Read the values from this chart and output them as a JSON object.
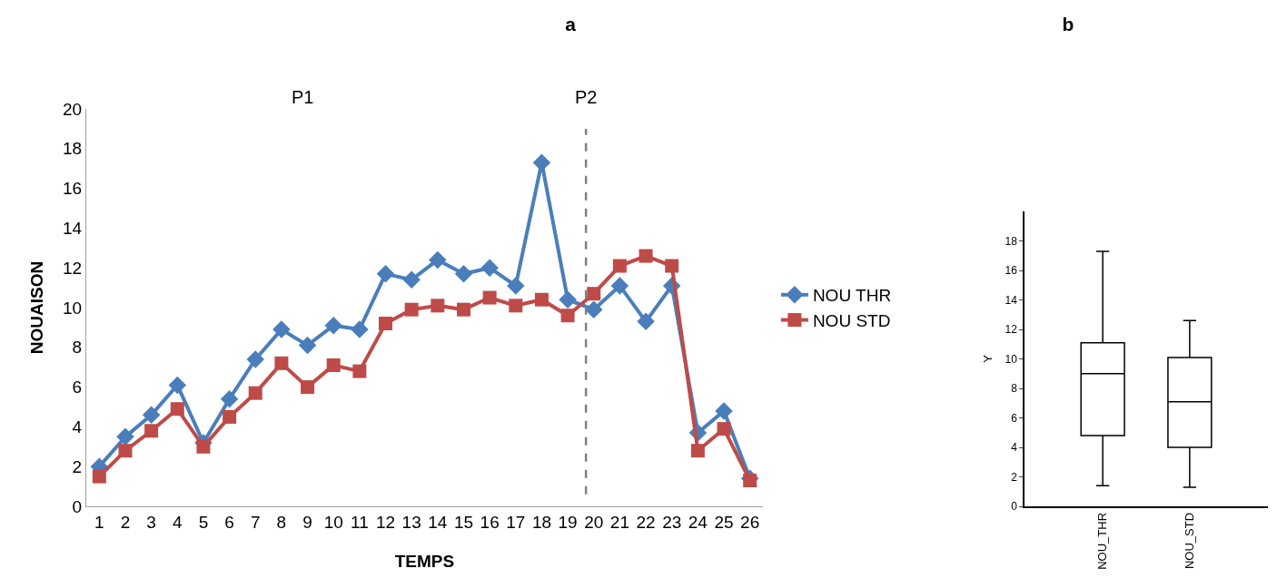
{
  "chart_data": [
    {
      "type": "line",
      "title": "a",
      "xlabel": "TEMPS",
      "ylabel": "NOUAISON",
      "x": [
        1,
        2,
        3,
        4,
        5,
        6,
        7,
        8,
        9,
        10,
        11,
        12,
        13,
        14,
        15,
        16,
        17,
        18,
        19,
        20,
        21,
        22,
        23,
        24,
        25,
        26
      ],
      "series": [
        {
          "name": "NOU THR",
          "color": "#4a7ebb",
          "marker": "diamond",
          "values": [
            2.0,
            3.5,
            4.6,
            6.1,
            3.2,
            5.4,
            7.4,
            8.9,
            8.1,
            9.1,
            8.9,
            11.7,
            11.4,
            12.4,
            11.7,
            12.0,
            11.1,
            17.3,
            10.4,
            9.9,
            11.1,
            9.3,
            11.1,
            3.7,
            4.8,
            1.4
          ]
        },
        {
          "name": "NOU STD",
          "color": "#be4b48",
          "marker": "square",
          "values": [
            1.5,
            2.8,
            3.8,
            4.9,
            3.0,
            4.5,
            5.7,
            7.2,
            6.0,
            7.1,
            6.8,
            9.2,
            9.9,
            10.1,
            9.9,
            10.5,
            10.1,
            10.4,
            9.6,
            10.7,
            12.1,
            12.6,
            12.1,
            2.8,
            3.9,
            1.3
          ]
        }
      ],
      "xlim": [
        0.5,
        26.5
      ],
      "xticks": [
        1,
        2,
        3,
        4,
        5,
        6,
        7,
        8,
        9,
        10,
        11,
        12,
        13,
        14,
        15,
        16,
        17,
        18,
        19,
        20,
        21,
        22,
        23,
        24,
        25,
        26
      ],
      "ylim": [
        0,
        20
      ],
      "yticks": [
        0,
        2,
        4,
        6,
        8,
        10,
        12,
        14,
        16,
        18,
        20
      ],
      "ref_lines": [
        {
          "axis": "x",
          "value": 19.7,
          "label": "P2",
          "color": "#808080",
          "line_style": "dashed"
        }
      ],
      "annotations": [
        "P1"
      ],
      "grid": false,
      "legend": "right"
    },
    {
      "type": "box",
      "title": "b",
      "ylabel": "Y",
      "categories": [
        "NOU_THR",
        "NOU_STD"
      ],
      "boxes": [
        {
          "low": 1.4,
          "q1": 4.8,
          "median": 9.0,
          "q3": 11.1,
          "high": 17.3
        },
        {
          "low": 1.3,
          "q1": 4.0,
          "median": 7.1,
          "q3": 10.1,
          "high": 12.6
        }
      ],
      "ylim": [
        0,
        20
      ],
      "yticks": [
        0,
        2,
        4,
        6,
        8,
        10,
        12,
        14,
        16,
        18
      ],
      "grid": false,
      "legend": false
    }
  ]
}
